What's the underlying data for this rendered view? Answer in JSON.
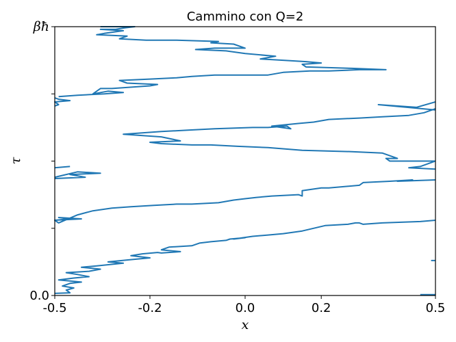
{
  "chart_data": {
    "type": "line",
    "title": "Cammino con Q=2",
    "xlabel": "x",
    "ylabel": "τ",
    "xlim": [
      -0.5,
      0.5
    ],
    "ylim": [
      0,
      1
    ],
    "x_ticks": [
      {
        "value": -0.5,
        "label": "-0.5"
      },
      {
        "value": -0.25,
        "label": "-0.2"
      },
      {
        "value": 0.0,
        "label": "0.0"
      },
      {
        "value": 0.2,
        "label": "0.2"
      },
      {
        "value": 0.5,
        "label": "0.5"
      }
    ],
    "y_ticks": [
      {
        "value": 0.0,
        "label": "0.0"
      },
      {
        "value": 0.25,
        "label": ""
      },
      {
        "value": 0.5,
        "label": ""
      },
      {
        "value": 0.75,
        "label": ""
      },
      {
        "value": 1.0,
        "label": "βħ"
      }
    ],
    "grid": false,
    "color": "#1f77b4",
    "series": [
      {
        "x": [
          0.46,
          0.5
        ],
        "y": [
          0.003,
          0.003
        ]
      },
      {
        "x": [
          -0.5,
          -0.46,
          -0.47,
          -0.45,
          -0.48,
          -0.46,
          -0.43,
          -0.49,
          -0.45,
          -0.41,
          -0.44,
          -0.47,
          -0.41,
          -0.38,
          -0.43,
          -0.39,
          -0.32,
          -0.36,
          -0.31,
          -0.25,
          -0.3,
          -0.27,
          -0.23,
          -0.22,
          -0.17,
          -0.22,
          -0.2,
          -0.14,
          -0.12,
          -0.09,
          -0.05,
          -0.04,
          0.0,
          -0.03,
          0.02,
          0.06,
          0.1,
          0.15,
          0.21,
          0.27,
          0.29,
          0.3,
          0.31,
          0.36,
          0.46,
          0.5
        ],
        "y": [
          0.008,
          0.01,
          0.02,
          0.028,
          0.035,
          0.045,
          0.05,
          0.058,
          0.065,
          0.07,
          0.078,
          0.085,
          0.09,
          0.098,
          0.105,
          0.11,
          0.12,
          0.125,
          0.132,
          0.14,
          0.148,
          0.155,
          0.16,
          0.158,
          0.163,
          0.17,
          0.18,
          0.185,
          0.195,
          0.2,
          0.205,
          0.21,
          0.215,
          0.21,
          0.22,
          0.225,
          0.23,
          0.24,
          0.26,
          0.265,
          0.27,
          0.27,
          0.265,
          0.27,
          0.275,
          0.28
        ]
      },
      {
        "x": [
          0.5,
          0.49,
          0.5
        ],
        "y": [
          0.13,
          0.13,
          0.13
        ]
      },
      {
        "x": [
          -0.5,
          -0.43,
          -0.49,
          -0.46,
          -0.5,
          -0.49,
          -0.44,
          -0.4,
          -0.35,
          -0.3,
          -0.24,
          -0.18,
          -0.14,
          -0.07,
          -0.03,
          0.0,
          0.03,
          0.07,
          0.14,
          0.15,
          0.15,
          0.2,
          0.22,
          0.3,
          0.31,
          0.38,
          0.44,
          0.4,
          0.5
        ],
        "y": [
          0.28,
          0.285,
          0.29,
          0.285,
          0.28,
          0.27,
          0.3,
          0.315,
          0.325,
          0.33,
          0.335,
          0.34,
          0.34,
          0.345,
          0.355,
          0.36,
          0.365,
          0.37,
          0.375,
          0.37,
          0.39,
          0.4,
          0.4,
          0.41,
          0.42,
          0.425,
          0.43,
          0.425,
          0.43
        ]
      },
      {
        "x": [
          -0.5,
          -0.42,
          -0.46,
          -0.38,
          -0.44,
          -0.5
        ],
        "y": [
          0.435,
          0.44,
          0.45,
          0.455,
          0.46,
          0.44
        ]
      },
      {
        "x": [
          -0.5,
          -0.46
        ],
        "y": [
          0.475,
          0.48
        ]
      },
      {
        "x": [
          0.5,
          0.43,
          0.46,
          0.5
        ],
        "y": [
          0.47,
          0.475,
          0.48,
          0.5
        ]
      },
      {
        "x": [
          0.5,
          0.38,
          0.37,
          0.4,
          0.36,
          0.28,
          0.15,
          0.06,
          -0.02,
          -0.09,
          -0.14,
          -0.22,
          -0.25,
          -0.17,
          -0.22,
          -0.32,
          -0.22,
          -0.15,
          -0.08,
          0.02,
          0.06,
          0.11,
          0.12,
          0.07,
          0.14,
          0.18,
          0.22,
          0.3,
          0.36,
          0.43,
          0.47,
          0.5
        ],
        "y": [
          0.5,
          0.5,
          0.51,
          0.51,
          0.53,
          0.535,
          0.54,
          0.55,
          0.555,
          0.56,
          0.56,
          0.565,
          0.57,
          0.575,
          0.59,
          0.6,
          0.61,
          0.615,
          0.62,
          0.625,
          0.625,
          0.63,
          0.62,
          0.63,
          0.64,
          0.645,
          0.655,
          0.66,
          0.665,
          0.67,
          0.68,
          0.695
        ]
      },
      {
        "x": [
          0.5,
          0.35,
          0.45,
          0.5
        ],
        "y": [
          0.69,
          0.71,
          0.7,
          0.72
        ]
      },
      {
        "x": [
          -0.5,
          -0.49,
          -0.5,
          -0.46,
          -0.49,
          -0.5
        ],
        "y": [
          0.705,
          0.71,
          0.72,
          0.725,
          0.73,
          0.735
        ]
      },
      {
        "x": [
          -0.49,
          -0.44,
          -0.37,
          -0.32,
          -0.36,
          -0.4,
          -0.38,
          -0.35,
          -0.25,
          -0.23,
          -0.31,
          -0.33,
          -0.25,
          -0.18,
          -0.14,
          -0.08,
          0.0,
          0.06,
          0.1,
          0.17,
          0.22,
          0.3,
          0.37,
          0.28,
          0.16,
          0.15,
          0.2,
          0.16,
          0.1,
          0.04,
          0.08,
          0.0,
          -0.05,
          -0.13,
          -0.08,
          0.0,
          -0.03,
          -0.09,
          -0.07,
          -0.18,
          -0.26,
          -0.33,
          -0.31,
          -0.39,
          -0.37,
          -0.32,
          -0.38,
          -0.34,
          -0.32,
          -0.29,
          -0.38
        ],
        "y": [
          0.74,
          0.745,
          0.75,
          0.755,
          0.76,
          0.75,
          0.77,
          0.77,
          0.78,
          0.785,
          0.79,
          0.8,
          0.805,
          0.81,
          0.815,
          0.82,
          0.82,
          0.82,
          0.83,
          0.835,
          0.835,
          0.84,
          0.84,
          0.845,
          0.85,
          0.86,
          0.865,
          0.87,
          0.875,
          0.88,
          0.89,
          0.9,
          0.91,
          0.915,
          0.92,
          0.92,
          0.935,
          0.94,
          0.945,
          0.95,
          0.95,
          0.955,
          0.965,
          0.97,
          0.975,
          0.985,
          0.99,
          0.99,
          0.995,
          1.0,
          1.0
        ]
      }
    ]
  }
}
